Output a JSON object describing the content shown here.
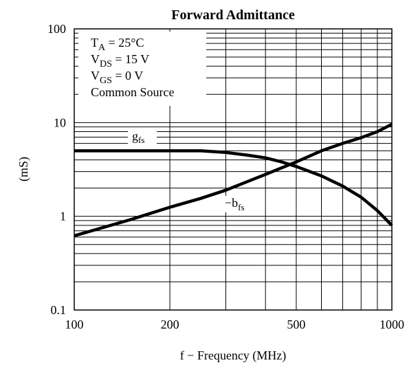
{
  "chart_data": {
    "type": "line",
    "title": "Forward Admittance",
    "xlabel": "f − Frequency (MHz)",
    "ylabel": "(mS)",
    "xscale": "log",
    "yscale": "log",
    "xlim": [
      100,
      1000
    ],
    "ylim": [
      0.1,
      100
    ],
    "grid": true,
    "x_ticks": [
      "100",
      "200",
      "500",
      "1000"
    ],
    "y_ticks": [
      "0.1",
      "1",
      "10",
      "100"
    ],
    "conditions": {
      "ta": {
        "main": "T",
        "sub": "A",
        "rest": " = 25°C"
      },
      "vds": {
        "main": "V",
        "sub": "DS",
        "rest": " = 15 V"
      },
      "vgs": {
        "main": "V",
        "sub": "GS",
        "rest": " = 0 V"
      },
      "config": "Common Source"
    },
    "series": [
      {
        "name": "gfs",
        "label_main": "g",
        "label_sub": "fs",
        "x": [
          100,
          150,
          200,
          250,
          300,
          350,
          400,
          450,
          500,
          600,
          700,
          800,
          900,
          1000
        ],
        "values": [
          5.0,
          5.0,
          5.0,
          5.0,
          4.8,
          4.5,
          4.2,
          3.8,
          3.4,
          2.7,
          2.1,
          1.6,
          1.15,
          0.8
        ]
      },
      {
        "name": "−bfs",
        "label_main": "−b",
        "label_sub": "fs",
        "x": [
          100,
          150,
          200,
          250,
          300,
          400,
          500,
          600,
          700,
          800,
          900,
          1000
        ],
        "values": [
          0.62,
          0.92,
          1.25,
          1.55,
          1.9,
          2.8,
          3.8,
          5.0,
          6.0,
          6.9,
          8.0,
          9.6
        ]
      }
    ]
  }
}
